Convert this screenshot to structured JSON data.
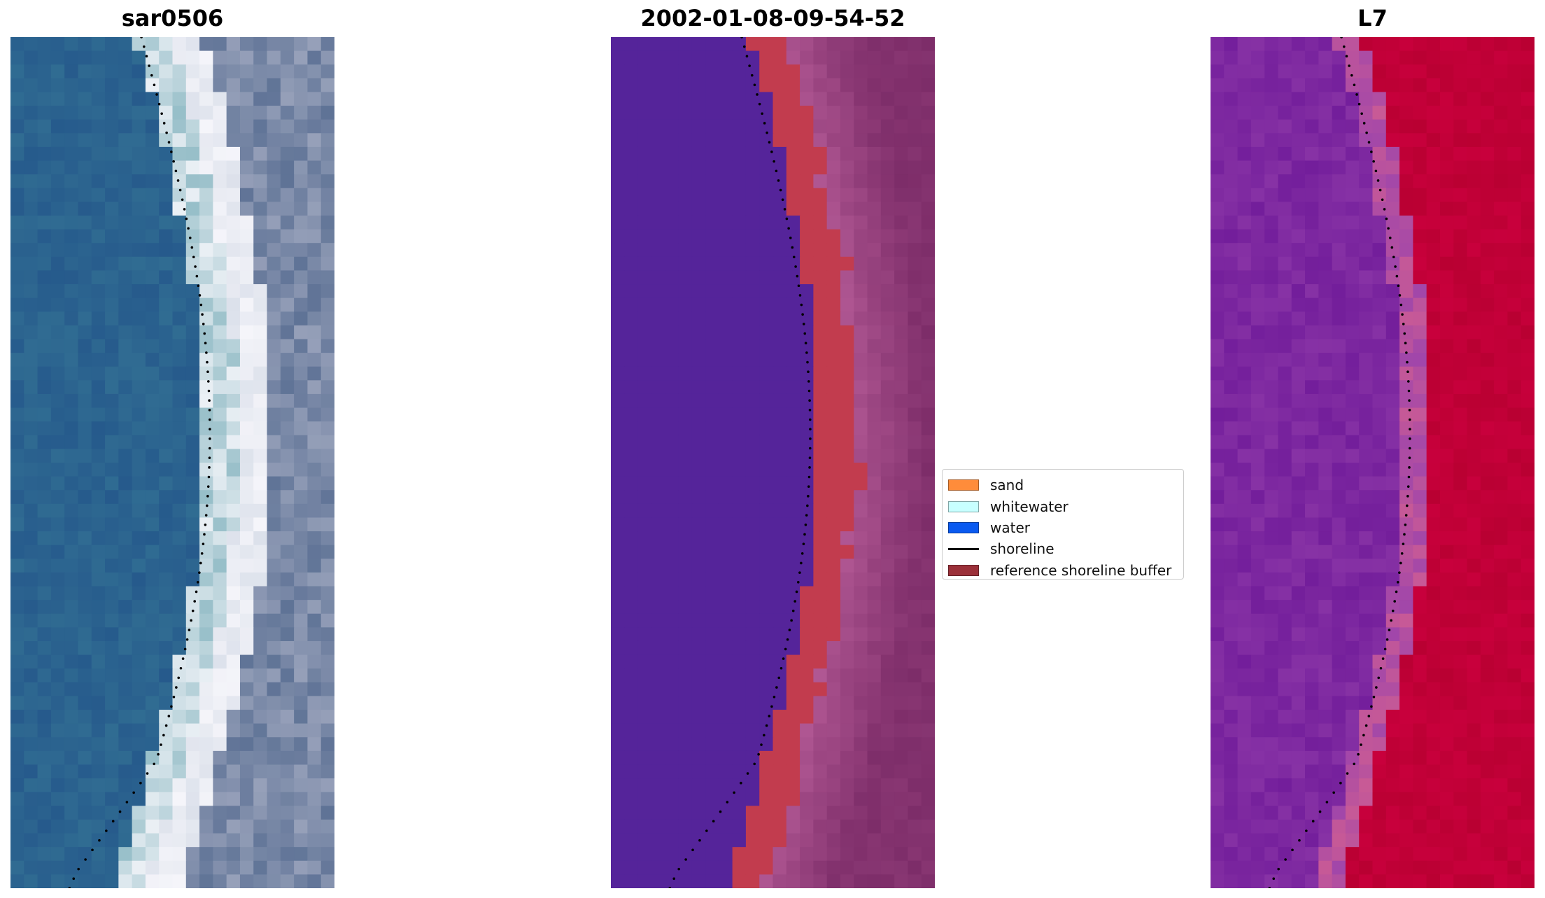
{
  "panels": [
    {
      "title": "sar0506",
      "palette": "rgb"
    },
    {
      "title": "2002-01-08-09-54-52",
      "palette": "classified"
    },
    {
      "title": "L7",
      "palette": "index"
    }
  ],
  "legend": {
    "items": [
      {
        "label": "sand",
        "color": "#ff8c3a",
        "kind": "patch"
      },
      {
        "label": "whitewater",
        "color": "#c8ffff",
        "kind": "patch"
      },
      {
        "label": "water",
        "color": "#0a5af0",
        "kind": "patch"
      },
      {
        "label": "shoreline",
        "color": "#000000",
        "kind": "line"
      },
      {
        "label": "reference shoreline buffer",
        "color": "#9b3039",
        "kind": "patch"
      }
    ]
  },
  "colors": {
    "water_rgb": "#2f5f8f",
    "water_class": "#55249a",
    "buffer": "#c23c4e",
    "land_class": "#8a3a72",
    "index_water": "#7a28a0",
    "index_land": "#c8003c"
  }
}
